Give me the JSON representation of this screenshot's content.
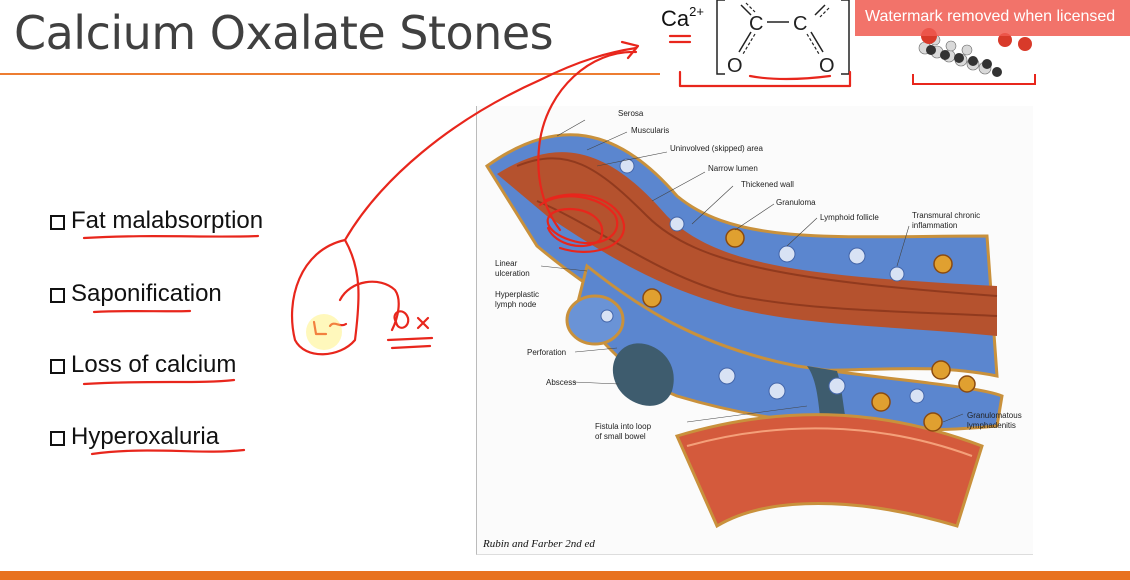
{
  "slide": {
    "title": "Calcium Oxalate Stones",
    "bullets": [
      "Fat malabsorption",
      "Saponification",
      "Loss of calcium",
      "Hyperoxaluria"
    ]
  },
  "formula": {
    "ion": "Ca",
    "charge": "2+",
    "atoms": {
      "carbon": "C",
      "oxygen": "O"
    }
  },
  "watermark": "Watermark removed when licensed",
  "figure": {
    "caption": "Rubin and Farber 2nd ed",
    "labels": {
      "serosa": "Serosa",
      "muscularis": "Muscularis",
      "uninvolved": "Uninvolved (skipped) area",
      "narrow_lumen": "Narrow lumen",
      "thickened_wall": "Thickened wall",
      "granuloma": "Granuloma",
      "lymphoid_follicle": "Lymphoid follicle",
      "transmural_1": "Transmural chronic",
      "transmural_2": "inflammation",
      "linear_1": "Linear",
      "linear_2": "ulceration",
      "hyperplastic_1": "Hyperplastic",
      "hyperplastic_2": "lymph node",
      "perforation": "Perforation",
      "abscess": "Abscess",
      "fistula_1": "Fistula into loop",
      "fistula_2": "of small bowel",
      "granulomatous_1": "Granulomatous",
      "granulomatous_2": "lymphadenitis"
    }
  },
  "annotations": {
    "ink_color": "#e8261c",
    "handwriting_1": "Ca",
    "handwriting_2": "Ox"
  },
  "colors": {
    "title_rule": "#ed7d31",
    "bottom_bar": "#e8721f",
    "bowel_blue": "#4c78c8",
    "bowel_red": "#b04a2c"
  }
}
